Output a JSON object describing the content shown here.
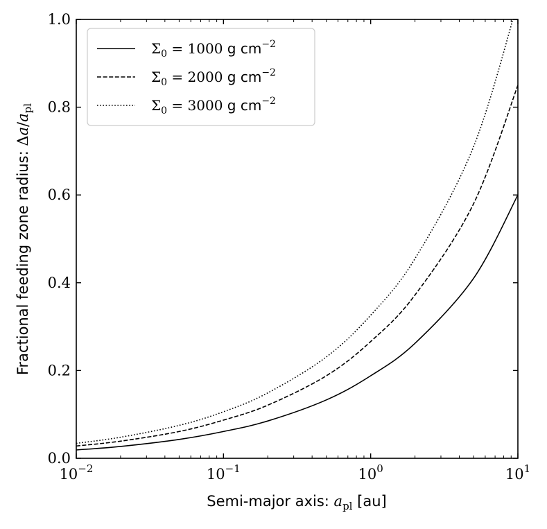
{
  "chart_data": {
    "type": "line",
    "xscale": "log",
    "xlim": [
      0.01,
      10
    ],
    "ylim": [
      0.0,
      1.0
    ],
    "xticks": [
      {
        "value": 0.01,
        "base": "10",
        "exp": "−2"
      },
      {
        "value": 0.1,
        "base": "10",
        "exp": "−1"
      },
      {
        "value": 1,
        "base": "10",
        "exp": "0"
      },
      {
        "value": 10,
        "base": "10",
        "exp": "1"
      }
    ],
    "yticks": [
      {
        "value": 0.0,
        "label": "0.0"
      },
      {
        "value": 0.2,
        "label": "0.2"
      },
      {
        "value": 0.4,
        "label": "0.4"
      },
      {
        "value": 0.6,
        "label": "0.6"
      },
      {
        "value": 0.8,
        "label": "0.8"
      },
      {
        "value": 1.0,
        "label": "1.0"
      }
    ],
    "xlabel": {
      "prefix": "Semi-major axis: ",
      "var": "a",
      "sub": "pl",
      "suffix": " [au]"
    },
    "ylabel": {
      "prefix": "Fractional feeding zone radius: ",
      "delta": "Δ",
      "var": "a",
      "slash": "/",
      "var2": "a",
      "sub": "pl"
    },
    "legend_position": "upper-left",
    "grid": false,
    "series": [
      {
        "name": "Σ0 = 1000 g cm−2",
        "legend": {
          "sigma": "Σ",
          "sub": "0",
          "eq": " = 1000 ",
          "unit": "g cm",
          "exp": "−2"
        },
        "style": "solid",
        "x": [
          0.01,
          0.02,
          0.05,
          0.1,
          0.2,
          0.5,
          1,
          2,
          5,
          10
        ],
        "y": [
          0.019,
          0.027,
          0.043,
          0.061,
          0.085,
          0.133,
          0.188,
          0.262,
          0.41,
          0.6
        ]
      },
      {
        "name": "Σ0 = 2000 g cm−2",
        "legend": {
          "sigma": "Σ",
          "sub": "0",
          "eq": " = 2000 ",
          "unit": "g cm",
          "exp": "−2"
        },
        "style": "dashed",
        "x": [
          0.01,
          0.02,
          0.05,
          0.1,
          0.2,
          0.5,
          1,
          2,
          5,
          10
        ],
        "y": [
          0.028,
          0.039,
          0.061,
          0.087,
          0.121,
          0.188,
          0.266,
          0.372,
          0.58,
          0.85
        ]
      },
      {
        "name": "Σ0 = 3000 g cm−2",
        "legend": {
          "sigma": "Σ",
          "sub": "0",
          "eq": " = 3000 ",
          "unit": "g cm",
          "exp": "−2"
        },
        "style": "dotted",
        "x": [
          0.01,
          0.02,
          0.05,
          0.1,
          0.2,
          0.5,
          1,
          2,
          5,
          10
        ],
        "y": [
          0.034,
          0.048,
          0.075,
          0.106,
          0.149,
          0.231,
          0.326,
          0.455,
          0.71,
          1.04
        ]
      }
    ]
  }
}
